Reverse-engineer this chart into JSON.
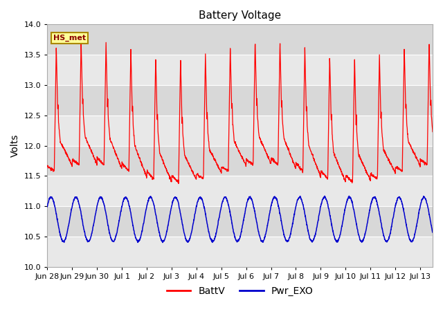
{
  "title": "Battery Voltage",
  "ylabel": "Volts",
  "ylim": [
    10.0,
    14.0
  ],
  "yticks": [
    10.0,
    10.5,
    11.0,
    11.5,
    12.0,
    12.5,
    13.0,
    13.5,
    14.0
  ],
  "xlabels": [
    "Jun 28",
    "Jun 29",
    "Jun 30",
    "Jul 1",
    "Jul 2",
    "Jul 3",
    "Jul 4",
    "Jul 5",
    "Jul 6",
    "Jul 7",
    "Jul 8",
    "Jul 9",
    "Jul 10",
    "Jul 11",
    "Jul 12",
    "Jul 13"
  ],
  "legend_label1": "BattV",
  "legend_label2": "Pwr_EXO",
  "line1_color": "#ff0000",
  "line2_color": "#0000cc",
  "annotation_text": "HS_met",
  "annotation_bg": "#ffff99",
  "annotation_border": "#aa8800",
  "fig_bg": "#ffffff",
  "plot_bg": "#ebebeb",
  "band_light": "#e8e8e8",
  "band_dark": "#d8d8d8",
  "grid_color": "#ffffff",
  "title_fontsize": 11,
  "axis_fontsize": 10,
  "tick_fontsize": 8,
  "n_days": 15.5,
  "batt_night_low": 11.5,
  "batt_peak": 13.6,
  "batt_shoulder": 12.5,
  "batt_shoulder2": 12.3,
  "pwr_low": 10.42,
  "pwr_high": 11.15
}
